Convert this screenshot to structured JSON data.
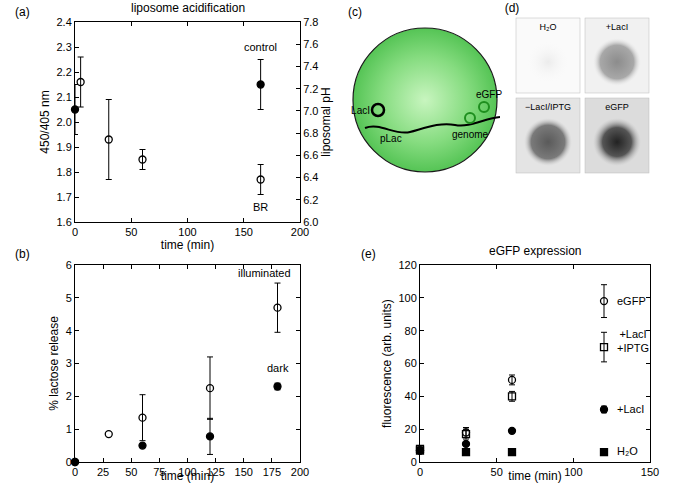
{
  "chart_data": [
    {
      "type": "scatter",
      "panel": "(a)",
      "title": "liposome acidification",
      "xlabel": "time (min)",
      "ylabel": "450/405 nm",
      "y2label": "liposomal pH",
      "xlim": [
        0,
        200
      ],
      "xticks": [
        0,
        50,
        100,
        150,
        200
      ],
      "ylim": [
        1.6,
        2.4
      ],
      "yticks": [
        1.6,
        1.7,
        1.8,
        1.9,
        {
          "value": 2.0,
          "label": "2.0"
        },
        2.1,
        2.2,
        2.3,
        2.4
      ],
      "y2lim": [
        6.0,
        7.8
      ],
      "y2ticks": [
        {
          "value": 6.0,
          "label": "6.0"
        },
        6.2,
        6.4,
        6.6,
        6.8,
        {
          "value": 7.0,
          "label": "7.0"
        },
        7.2,
        7.4,
        7.6,
        7.8
      ],
      "grid": false,
      "series": [
        {
          "color": "#000000",
          "marker": "filled_circle",
          "x": [
            0,
            165
          ],
          "values": [
            2.05,
            2.15
          ],
          "errors": [
            0.1,
            0.1
          ]
        },
        {
          "color": "#000000",
          "marker": "open_circle",
          "x": [
            5,
            30,
            60,
            165
          ],
          "values": [
            2.16,
            1.93,
            1.85,
            1.77
          ],
          "errors": [
            0.1,
            0.16,
            0.04,
            0.06
          ]
        }
      ],
      "annotations": [
        {
          "text": "control",
          "x": 165,
          "y": 2.3
        },
        {
          "text": "BR",
          "x": 165,
          "y": 1.66
        }
      ]
    },
    {
      "type": "scatter",
      "panel": "(b)",
      "xlabel": "time (min)",
      "ylabel": "% lactose release",
      "xlim": [
        0,
        200
      ],
      "xticks": [
        0,
        25,
        50,
        75,
        100,
        125,
        150,
        175,
        200
      ],
      "ylim": [
        0,
        6
      ],
      "yticks": [
        0,
        1,
        2,
        3,
        4,
        5,
        6
      ],
      "grid": false,
      "series": [
        {
          "color": "#000000",
          "marker": "open_circle",
          "x": [
            0,
            30,
            60,
            120,
            180
          ],
          "values": [
            0,
            0.85,
            1.35,
            2.25,
            4.7
          ],
          "errors": [
            null,
            null,
            0.7,
            0.95,
            0.75
          ]
        },
        {
          "color": "#000000",
          "marker": "filled_circle",
          "x": [
            0,
            60,
            120,
            180
          ],
          "values": [
            0,
            0.5,
            0.78,
            2.3
          ],
          "errors": [
            null,
            null,
            0.55,
            0.1
          ]
        }
      ],
      "annotations": [
        {
          "text": "illuminated",
          "x": 168,
          "y": 5.75
        },
        {
          "text": "dark",
          "x": 180,
          "y": 2.85
        }
      ]
    },
    {
      "type": "scatter",
      "panel": "(e)",
      "title": "eGFP expression",
      "xlabel": "time (min)",
      "ylabel": "fluorescence (arb. units)",
      "xlim": [
        0,
        150
      ],
      "xticks": [
        0,
        50,
        100,
        150
      ],
      "ylim": [
        0,
        120
      ],
      "yticks": [
        0,
        20,
        40,
        60,
        80,
        100,
        120
      ],
      "grid": false,
      "series": [
        {
          "color": "#000000",
          "marker": "open_circle",
          "x": [
            0,
            30,
            60,
            120
          ],
          "values": [
            7,
            18,
            50,
            98
          ],
          "errors": [
            null,
            3,
            3,
            10
          ]
        },
        {
          "color": "#000000",
          "marker": "open_square",
          "x": [
            0,
            30,
            60,
            120
          ],
          "values": [
            8,
            17,
            40,
            70
          ],
          "errors": [
            null,
            3,
            3,
            9
          ]
        },
        {
          "color": "#000000",
          "marker": "filled_circle",
          "x": [
            0,
            30,
            60,
            120
          ],
          "values": [
            7,
            11,
            19,
            32
          ],
          "errors": [
            null,
            null,
            null,
            2
          ]
        },
        {
          "color": "#000000",
          "marker": "filled_square",
          "x": [
            0,
            30,
            60,
            120
          ],
          "values": [
            7,
            6,
            6,
            6
          ],
          "errors": [
            null,
            null,
            null,
            null
          ]
        }
      ],
      "annotations": [
        {
          "text": "eGFP",
          "x": 127,
          "y": 98
        },
        {
          "text": "+LacI\n+IPTG",
          "x": 127,
          "y": 74
        },
        {
          "text": "+LacI",
          "x": 127,
          "y": 32
        },
        {
          "text": "H₂O",
          "x": 127,
          "y": 7
        }
      ]
    }
  ],
  "diagram": {
    "panel": "(c)",
    "texts": {
      "laci": "LacI",
      "egfp": "eGFP",
      "plac": "pLac",
      "genome": "genome"
    }
  },
  "images": {
    "panel": "(d)",
    "tiles": [
      "H₂O",
      "+LacI",
      "−LacI/IPTG",
      "eGFP"
    ]
  }
}
